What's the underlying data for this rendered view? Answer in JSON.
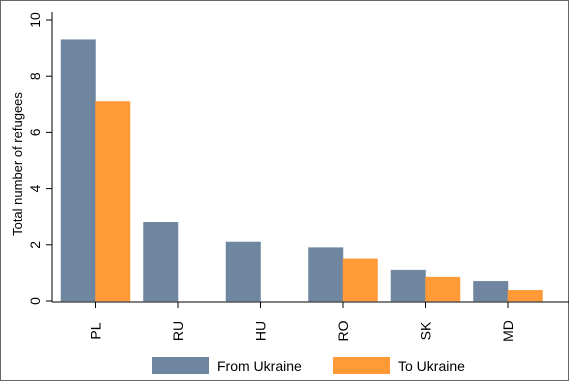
{
  "chart_data": {
    "type": "bar",
    "title": "",
    "xlabel": "",
    "ylabel": "Total number of refugees",
    "categories": [
      "PL",
      "RU",
      "HU",
      "RO",
      "SK",
      "MD"
    ],
    "series": [
      {
        "name": "From Ukraine",
        "values": [
          9.3,
          2.8,
          2.1,
          1.9,
          1.1,
          0.7
        ],
        "color": "#6e86a0"
      },
      {
        "name": "To Ukraine",
        "values": [
          7.1,
          0,
          0,
          1.5,
          0.85,
          0.38
        ],
        "color": "#ff9a36"
      }
    ],
    "ylim": [
      0,
      10
    ],
    "yticks": [
      "0",
      "2",
      "4",
      "6",
      "8",
      "10"
    ],
    "grid": false,
    "legend": "bottom"
  }
}
